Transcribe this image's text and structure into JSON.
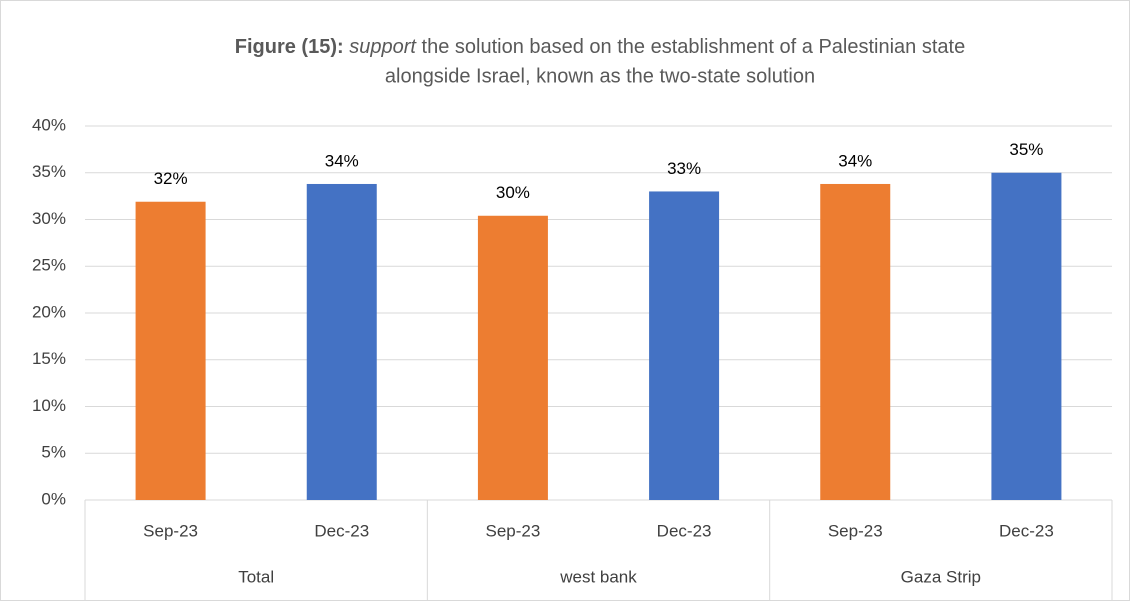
{
  "chart_data": {
    "type": "grouped_bar",
    "title": [
      "Figure (15):",
      "support",
      "the solution based on the establishment of a Palestinian state",
      "alongside Israel, known as the two-state solution"
    ],
    "groups": [
      {
        "name": "Total",
        "categories": [
          "Sep-23",
          "Dec-23"
        ],
        "values": [
          31.9,
          33.8
        ],
        "value_labels": [
          "32%",
          "34%"
        ]
      },
      {
        "name": "west bank",
        "categories": [
          "Sep-23",
          "Dec-23"
        ],
        "values": [
          30.4,
          33.0
        ],
        "value_labels": [
          "30%",
          "33%"
        ]
      },
      {
        "name": "Gaza Strip",
        "categories": [
          "Sep-23",
          "Dec-23"
        ],
        "values": [
          33.8,
          35.0
        ],
        "value_labels": [
          "34%",
          "35%"
        ]
      }
    ],
    "colors": [
      "#ed7d31",
      "#4472c4"
    ],
    "ylim": [
      0,
      40
    ],
    "yticks": [
      {
        "value": 0,
        "label": "0%"
      },
      {
        "value": 5,
        "label": "5%"
      },
      {
        "value": 10,
        "label": "10%"
      },
      {
        "value": 15,
        "label": "15%"
      },
      {
        "value": 20,
        "label": "20%"
      },
      {
        "value": 25,
        "label": "25%"
      },
      {
        "value": 30,
        "label": "30%"
      },
      {
        "value": 35,
        "label": "35%"
      },
      {
        "value": 40,
        "label": "40%"
      }
    ],
    "grid": true
  }
}
